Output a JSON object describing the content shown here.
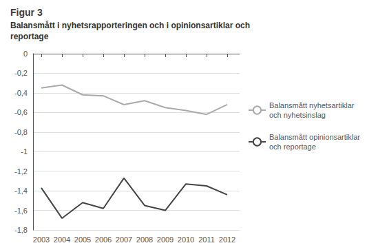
{
  "chart_data": {
    "type": "line",
    "title": "Figur 3",
    "subtitle": "Balansmått i nyhetsrapporteringen och i opinionsartiklar och\nreportage",
    "x": [
      2003,
      2004,
      2005,
      2006,
      2007,
      2008,
      2009,
      2010,
      2011,
      2012
    ],
    "xlim": [
      2002.6,
      2012.6
    ],
    "xticks": [
      2003,
      2004,
      2005,
      2006,
      2007,
      2008,
      2009,
      2010,
      2011,
      2012
    ],
    "series": [
      {
        "name": "Balansmått nyhetsartiklar\noch nyhetsinslag",
        "color": "#aaaaaa",
        "values": [
          -0.35,
          -0.32,
          -0.42,
          -0.43,
          -0.52,
          -0.48,
          -0.55,
          -0.58,
          -0.62,
          -0.52
        ]
      },
      {
        "name": "Balansmått opinionsartiklar\noch reportage",
        "color": "#444444",
        "values": [
          -1.37,
          -1.68,
          -1.52,
          -1.58,
          -1.27,
          -1.55,
          -1.6,
          -1.33,
          -1.35,
          -1.44
        ]
      }
    ],
    "ylim": [
      -1.8,
      0.0
    ],
    "yticks": [
      0,
      {
        "value": -0.2,
        "label": "-0,2"
      },
      {
        "value": -0.4,
        "label": "-0,4"
      },
      {
        "value": -0.6,
        "label": "-0,6"
      },
      {
        "value": -0.8,
        "label": "-0,8"
      },
      -1,
      {
        "value": -1.2,
        "label": "-1,2"
      },
      {
        "value": -1.4,
        "label": "-1,4"
      },
      {
        "value": -1.6,
        "label": "-1,6"
      },
      {
        "value": -1.8,
        "label": "-1,8"
      }
    ],
    "grid": "y",
    "legend": "right"
  }
}
